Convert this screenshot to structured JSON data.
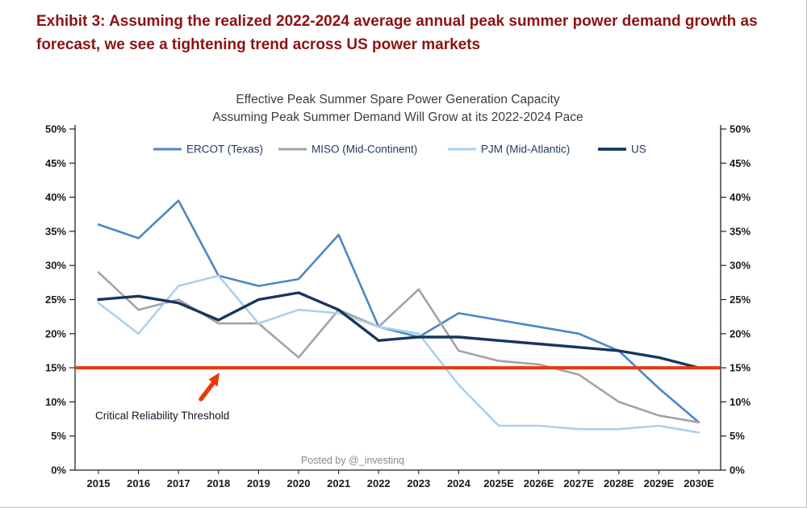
{
  "page": {
    "exhibit_title_line1": "Exhibit 3: Assuming the realized 2022-2024 average annual peak summer power demand growth as",
    "exhibit_title_line2": "forecast, we see a tightening trend across US power markets",
    "title_color": "#8e1212"
  },
  "chart_data": {
    "type": "line",
    "title_line1": "Effective Peak Summer Spare Power Generation Capacity",
    "title_line2": "Assuming Peak Summer Demand Will Grow at its 2022-2024 Pace",
    "categories": [
      "2015",
      "2016",
      "2017",
      "2018",
      "2019",
      "2020",
      "2021",
      "2022",
      "2023",
      "2024",
      "2025E",
      "2026E",
      "2027E",
      "2028E",
      "2029E",
      "2030E"
    ],
    "series": [
      {
        "name": "ERCOT (Texas)",
        "color": "#4a87c7",
        "width": 2.6,
        "values": [
          36,
          34,
          39.5,
          28.5,
          27,
          28,
          34.5,
          21,
          19.5,
          23,
          22,
          21,
          20,
          17.5,
          12,
          7
        ]
      },
      {
        "name": "MISO (Mid-Continent)",
        "color": "#a3a3a3",
        "width": 2.6,
        "values": [
          29,
          23.5,
          25,
          21.5,
          21.5,
          16.5,
          23.5,
          21,
          26.5,
          17.5,
          16,
          15.5,
          14,
          10,
          8,
          7
        ]
      },
      {
        "name": "PJM (Mid-Atlantic)",
        "color": "#abd0ec",
        "width": 2.6,
        "values": [
          24.5,
          20,
          27,
          28.5,
          21.5,
          23.5,
          23,
          21,
          20,
          12.5,
          6.5,
          6.5,
          6,
          6,
          6.5,
          5.5
        ]
      },
      {
        "name": "US",
        "color": "#17365d",
        "width": 3.4,
        "values": [
          25,
          25.5,
          24.5,
          22,
          25,
          26,
          23.5,
          19,
          19.5,
          19.5,
          19,
          18.5,
          18,
          17.5,
          16.5,
          15
        ]
      }
    ],
    "threshold": {
      "value": 15,
      "label": "Critical Reliability Threshold",
      "color": "#e8390f"
    },
    "ylim": [
      0,
      50
    ],
    "ytick_step": 5,
    "ytick_labels": [
      "0%",
      "5%",
      "10%",
      "15%",
      "20%",
      "25%",
      "30%",
      "35%",
      "40%",
      "45%",
      "50%"
    ],
    "yaxis_format": "percent",
    "grid": false,
    "legend_position": "top",
    "axes": "left-and-right",
    "watermark": "Posted by @_investinq",
    "text_color": "#1a1a1a",
    "title_color": "#3c3c3c",
    "legend_text_color": "#223a5e"
  }
}
